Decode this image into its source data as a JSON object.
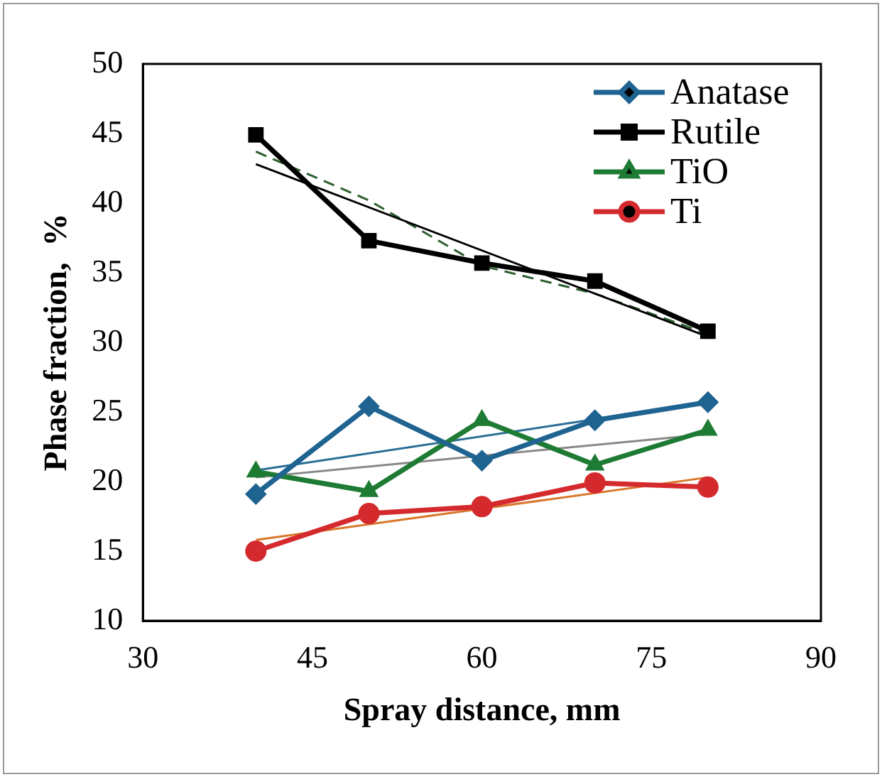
{
  "chart_data": {
    "type": "line",
    "xlabel": "Spray distance, mm",
    "ylabel": "Phase fraction,  %",
    "xlim": [
      30,
      90
    ],
    "xticks": [
      30,
      45,
      60,
      75,
      90
    ],
    "ylim": [
      10,
      50
    ],
    "yticks": [
      10,
      15,
      20,
      25,
      30,
      35,
      40,
      45,
      50
    ],
    "grid": false,
    "legend": "top right",
    "series": [
      {
        "name": "Anatase",
        "color": "#1f6391",
        "marker": "diamond",
        "x": [
          40,
          50,
          60,
          70,
          80
        ],
        "values": [
          19.1,
          25.4,
          21.5,
          24.4,
          25.7
        ]
      },
      {
        "name": "Rutile",
        "color": "#000000",
        "marker": "square",
        "x": [
          40,
          50,
          60,
          70,
          80
        ],
        "values": [
          44.9,
          37.3,
          35.7,
          34.4,
          30.8
        ]
      },
      {
        "name": "TiO",
        "color": "#1e7b34",
        "marker": "triangle",
        "x": [
          40,
          50,
          60,
          70,
          80
        ],
        "values": [
          20.7,
          19.3,
          24.4,
          21.2,
          23.7
        ]
      },
      {
        "name": "Ti",
        "color": "#d42a2e",
        "marker": "circle",
        "x": [
          40,
          50,
          60,
          70,
          80
        ],
        "values": [
          15.0,
          17.7,
          18.2,
          19.9,
          19.6
        ]
      },
      {
        "color": "#000000",
        "marker": "none",
        "x": [
          40,
          80
        ],
        "values": [
          42.8,
          30.4
        ]
      },
      {
        "color": "#2d5e2e",
        "marker": "none",
        "line_style": "dashed",
        "x": [
          40,
          50,
          60,
          70,
          80
        ],
        "values": [
          43.7,
          40.2,
          35.5,
          33.5,
          30.6
        ]
      },
      {
        "color": "#2a6e96",
        "marker": "none",
        "x": [
          40,
          80
        ],
        "values": [
          20.8,
          25.7
        ]
      },
      {
        "color": "#888888",
        "marker": "none",
        "x": [
          40,
          80
        ],
        "values": [
          20.3,
          23.4
        ]
      },
      {
        "color": "#d9772b",
        "marker": "none",
        "x": [
          40,
          80
        ],
        "values": [
          15.8,
          20.3
        ]
      }
    ]
  }
}
